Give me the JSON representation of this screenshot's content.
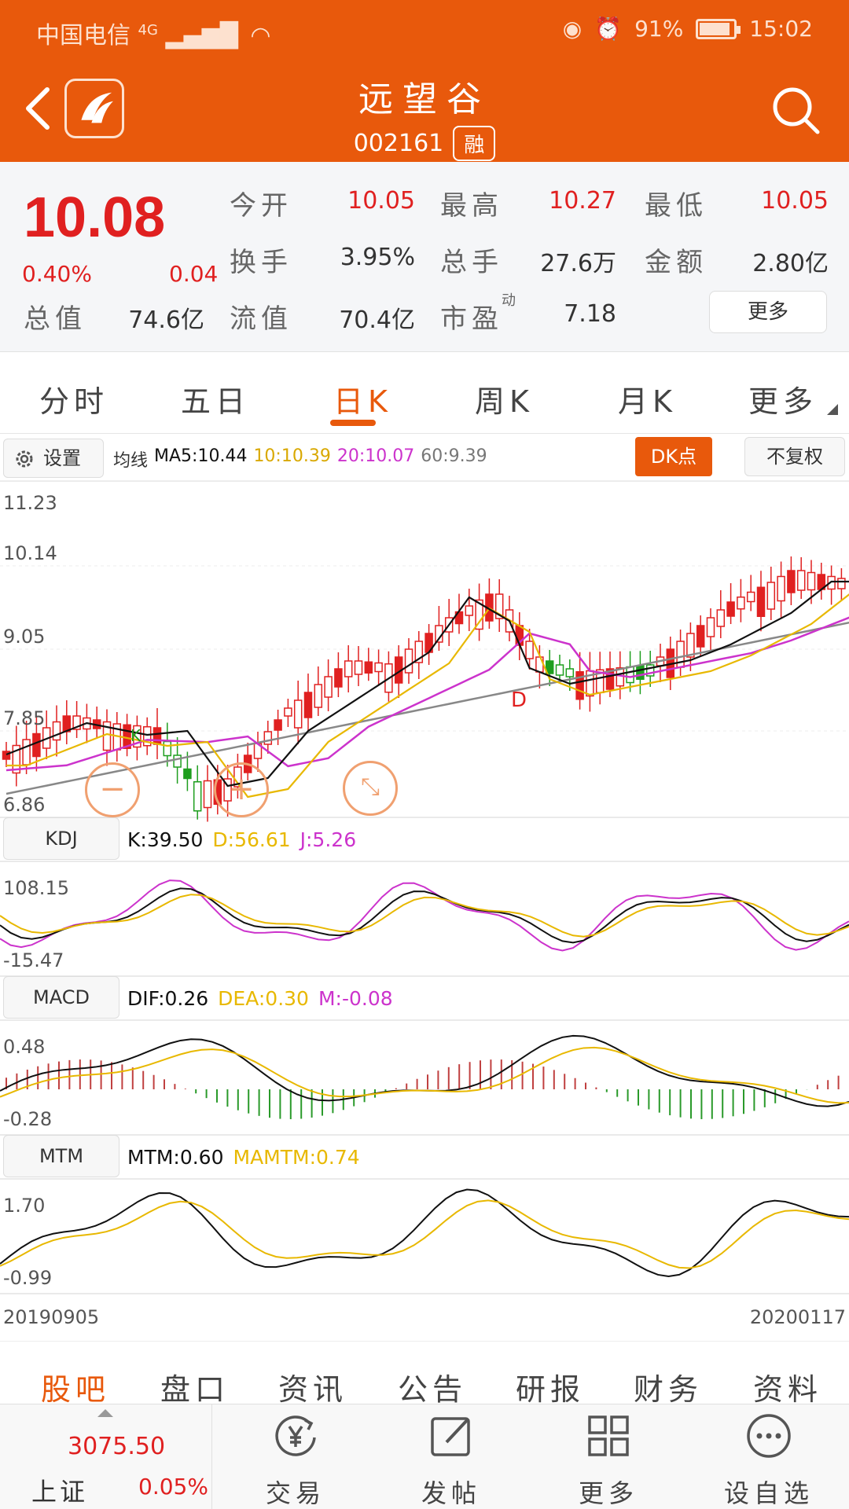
{
  "status_bar": {
    "carrier": "中国电信",
    "network": "4G",
    "battery": "91%",
    "time": "15:02"
  },
  "header": {
    "stock_name": "远望谷",
    "stock_code": "002161",
    "badge": "融"
  },
  "quote": {
    "price": "10.08",
    "change_pct": "0.40%",
    "change_abs": "0.04",
    "fields": [
      {
        "label": "今开",
        "value": "10.05",
        "red": true
      },
      {
        "label": "最高",
        "value": "10.27",
        "red": true
      },
      {
        "label": "最低",
        "value": "10.05",
        "red": true
      },
      {
        "label": "换手",
        "value": "3.95%",
        "red": false
      },
      {
        "label": "总手",
        "value": "27.6万",
        "red": false
      },
      {
        "label": "金额",
        "value": "2.80亿",
        "red": false
      },
      {
        "label": "总值",
        "value": "74.6亿",
        "red": false
      },
      {
        "label": "流值",
        "value": "70.4亿",
        "red": false
      },
      {
        "label": "市盈",
        "value": "7.18",
        "red": false
      }
    ],
    "pe_superscript": "动",
    "more_label": "更多"
  },
  "kline_tabs": [
    {
      "label": "分时",
      "active": false
    },
    {
      "label": "五日",
      "active": false
    },
    {
      "label": "日K",
      "active": true
    },
    {
      "label": "周K",
      "active": false
    },
    {
      "label": "月K",
      "active": false
    },
    {
      "label": "更多",
      "active": false
    }
  ],
  "settings": {
    "settings_label": "设置",
    "ma_prefix": "均线",
    "ma5": "MA5:10.44",
    "ma10": "10:10.39",
    "ma20": "20:10.07",
    "ma60": "60:9.39",
    "dk_label": "DK点",
    "fuquan_label": "不复权"
  },
  "price_axis": [
    "11.23",
    "10.14",
    "9.05",
    "7.85",
    "6.86"
  ],
  "kdj": {
    "label": "KDJ",
    "k": "K:39.50",
    "d": "D:56.61",
    "j": "J:5.26",
    "axis": [
      "108.15",
      "-15.47"
    ]
  },
  "macd": {
    "label": "MACD",
    "dif": "DIF:0.26",
    "dea": "DEA:0.30",
    "m": "M:-0.08",
    "axis": [
      "0.48",
      "-0.28"
    ]
  },
  "mtm": {
    "label": "MTM",
    "mtm": "MTM:0.60",
    "mamtm": "MAMTM:0.74",
    "axis": [
      "1.70",
      "-0.99"
    ]
  },
  "dates": {
    "start": "20190905",
    "end": "20200117"
  },
  "markers": {
    "k": "K",
    "d": "D"
  },
  "info_tabs": [
    {
      "label": "股吧",
      "active": true
    },
    {
      "label": "盘口",
      "active": false
    },
    {
      "label": "资讯",
      "active": false
    },
    {
      "label": "公告",
      "active": false
    },
    {
      "label": "研报",
      "active": false
    },
    {
      "label": "财务",
      "active": false
    },
    {
      "label": "资料",
      "active": false
    }
  ],
  "index": {
    "value": "3075.50",
    "name": "上证",
    "pct": "0.05%"
  },
  "bottom_nav": [
    {
      "label": "交易",
      "icon": "trade-yen-icon"
    },
    {
      "label": "发帖",
      "icon": "compose-icon"
    },
    {
      "label": "更多",
      "icon": "grid-icon"
    },
    {
      "label": "设自选",
      "icon": "more-dots-icon"
    }
  ],
  "colors": {
    "brand": "#e8590c",
    "up": "#e02020",
    "down": "#1e9e1e",
    "ma5": "#111111",
    "ma10": "#e8b800",
    "ma20": "#cc33cc",
    "ma60": "#888888"
  }
}
